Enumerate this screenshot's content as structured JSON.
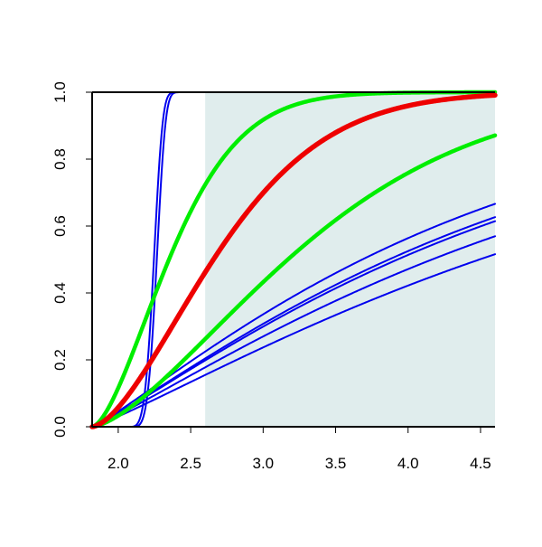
{
  "chart_data": {
    "type": "line",
    "title": "",
    "xlabel": "",
    "ylabel": "",
    "xlim": [
      1.82,
      4.6
    ],
    "ylim": [
      0,
      1
    ],
    "x_ticks": [
      2.0,
      2.5,
      3.0,
      3.5,
      4.0,
      4.5
    ],
    "x_tick_labels": [
      "2.0",
      "2.5",
      "3.0",
      "3.5",
      "4.0",
      "4.5"
    ],
    "y_ticks": [
      0.0,
      0.2,
      0.4,
      0.6,
      0.8,
      1.0
    ],
    "y_tick_labels": [
      "0.0",
      "0.2",
      "0.4",
      "0.6",
      "0.8",
      "1.0"
    ],
    "grid": false,
    "legend": "none",
    "shaded_region": {
      "x_from": 2.6,
      "x_to": 4.6,
      "color": "#e0eded"
    },
    "colors": {
      "blue": "#0000ee",
      "green": "#00ee00",
      "red": "#ee0000"
    },
    "x_start": 1.82,
    "series": [
      {
        "color": "blue",
        "k": 5.2,
        "p": 4.2,
        "x0": 0.25
      },
      {
        "color": "blue",
        "k": 5.2,
        "p": 4.2,
        "x0": 0.27
      },
      {
        "color": "green",
        "k": 1.5,
        "p": 1.6,
        "x0": 0
      },
      {
        "color": "red",
        "k": 0.95,
        "p": 1.6,
        "x0": 0
      },
      {
        "color": "green",
        "k": 0.58,
        "p": 1.5,
        "x0": 0
      },
      {
        "color": "blue",
        "k": 0.39,
        "p": 1.15,
        "x0": 0
      },
      {
        "color": "blue",
        "k": 0.355,
        "p": 1.15,
        "x0": 0
      },
      {
        "color": "blue",
        "k": 0.345,
        "p": 1.15,
        "x0": 0
      },
      {
        "color": "blue",
        "k": 0.31,
        "p": 1.15,
        "x0": 0
      },
      {
        "color": "blue",
        "k": 0.272,
        "p": 1.15,
        "x0": 0
      }
    ]
  }
}
